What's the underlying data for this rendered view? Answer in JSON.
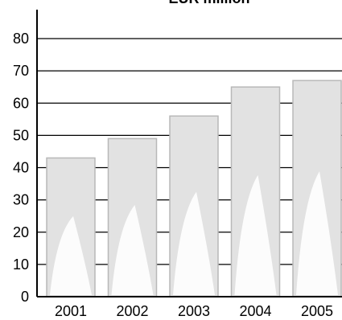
{
  "chart_data": {
    "type": "bar",
    "title": "EUR million",
    "categories": [
      "2001",
      "2002",
      "2003",
      "2004",
      "2005"
    ],
    "values": [
      43,
      49,
      56,
      65,
      67
    ],
    "ylim": [
      0,
      80
    ],
    "yticks": [
      0,
      10,
      20,
      30,
      40,
      50,
      60,
      70,
      80
    ],
    "grid": true,
    "colors": {
      "bar_fill": "#e2e2e2",
      "bar_edge": "#b8b8b8",
      "grid": "#000000"
    }
  }
}
